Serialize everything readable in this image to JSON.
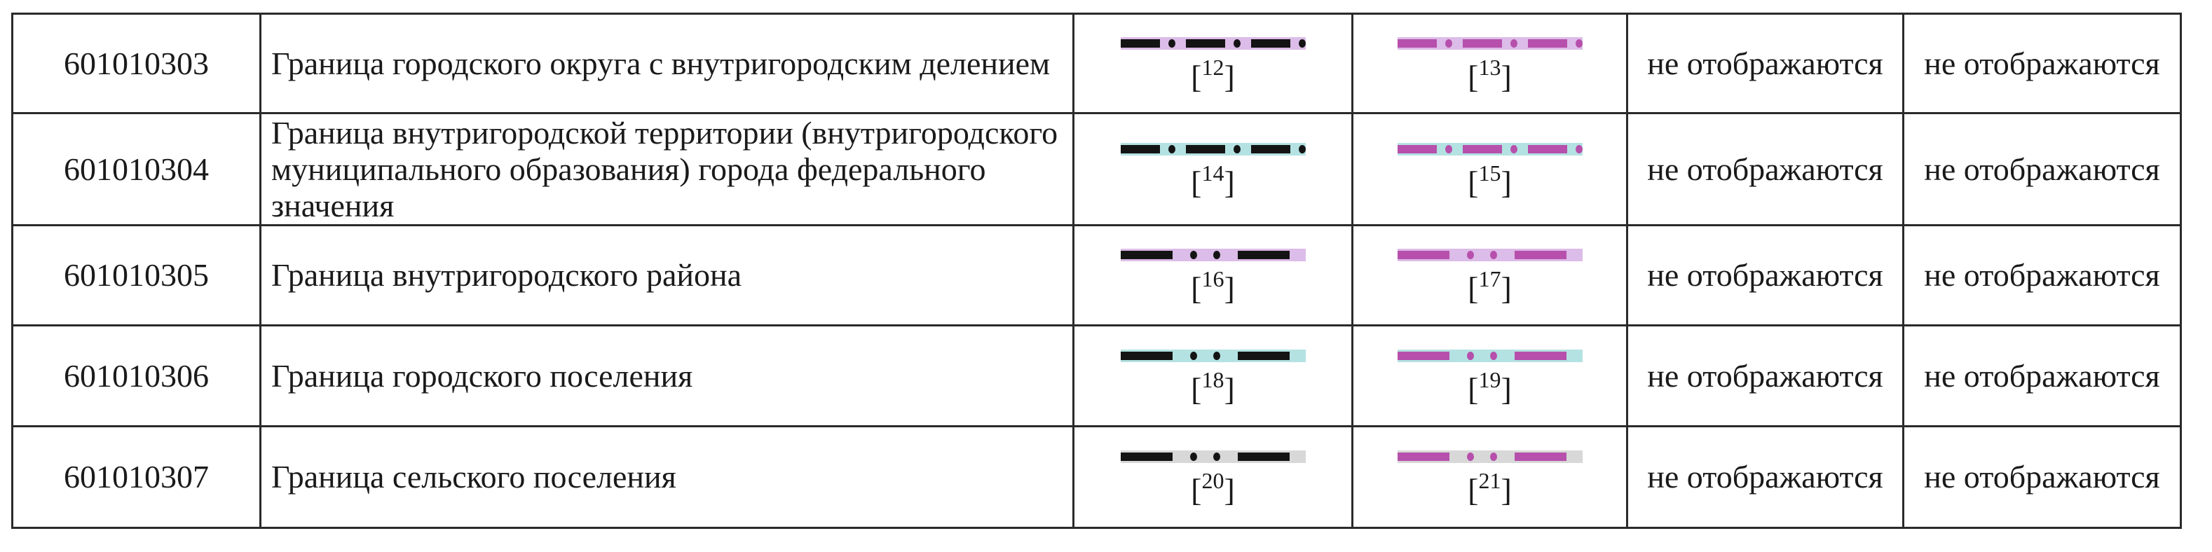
{
  "rows": [
    {
      "code": "601010303",
      "name": "Граница городского округа с внутригородским делением",
      "symbol1": {
        "pattern": "three-dash-dot",
        "line_color": "#141414",
        "bg_color": "#dcbce8",
        "ref": "12"
      },
      "symbol2": {
        "pattern": "three-dash-dot",
        "line_color": "#b650ac",
        "bg_color": "#dcbce8",
        "ref": "13"
      },
      "col4": "не отображаются",
      "col5": "не отображаются"
    },
    {
      "code": "601010304",
      "name": "Граница внутригородской территории (внутригородского муниципального образования) города федерального значения",
      "symbol1": {
        "pattern": "three-dash-dot",
        "line_color": "#141414",
        "bg_color": "#b4e2e2",
        "ref": "14"
      },
      "symbol2": {
        "pattern": "three-dash-dot",
        "line_color": "#b650ac",
        "bg_color": "#b4e2e2",
        "ref": "15"
      },
      "col4": "не отображаются",
      "col5": "не отображаются"
    },
    {
      "code": "601010305",
      "name": "Граница внутригородского района",
      "symbol1": {
        "pattern": "dash-two-dots",
        "line_color": "#141414",
        "bg_color": "#dcbce8",
        "ref": "16"
      },
      "symbol2": {
        "pattern": "dash-two-dots",
        "line_color": "#b650ac",
        "bg_color": "#dcbce8",
        "ref": "17"
      },
      "col4": "не отображаются",
      "col5": "не отображаются"
    },
    {
      "code": "601010306",
      "name": "Граница городского поселения",
      "symbol1": {
        "pattern": "dash-two-dots",
        "line_color": "#141414",
        "bg_color": "#b4e2e2",
        "ref": "18"
      },
      "symbol2": {
        "pattern": "dash-two-dots",
        "line_color": "#b650ac",
        "bg_color": "#b4e2e2",
        "ref": "19"
      },
      "col4": "не отображаются",
      "col5": "не отображаются"
    },
    {
      "code": "601010307",
      "name": "Граница сельского поселения",
      "symbol1": {
        "pattern": "dash-two-dots",
        "line_color": "#141414",
        "bg_color": "#d8d8d8",
        "ref": "20"
      },
      "symbol2": {
        "pattern": "dash-two-dots",
        "line_color": "#b650ac",
        "bg_color": "#d8d8d8",
        "ref": "21"
      },
      "col4": "не отображаются",
      "col5": "не отображаются"
    }
  ]
}
